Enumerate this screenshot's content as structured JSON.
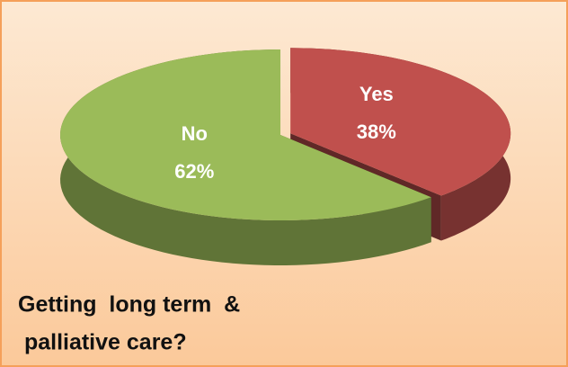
{
  "chart_data": {
    "type": "pie",
    "title": [
      "Getting  long term  &",
      " palliative care?"
    ],
    "categories": [
      "Yes",
      "No"
    ],
    "values": [
      38,
      62
    ],
    "value_labels": [
      "38%",
      "62%"
    ],
    "colors": [
      "#c0504d",
      "#9bbb59"
    ],
    "exploded": [
      true,
      false
    ]
  }
}
